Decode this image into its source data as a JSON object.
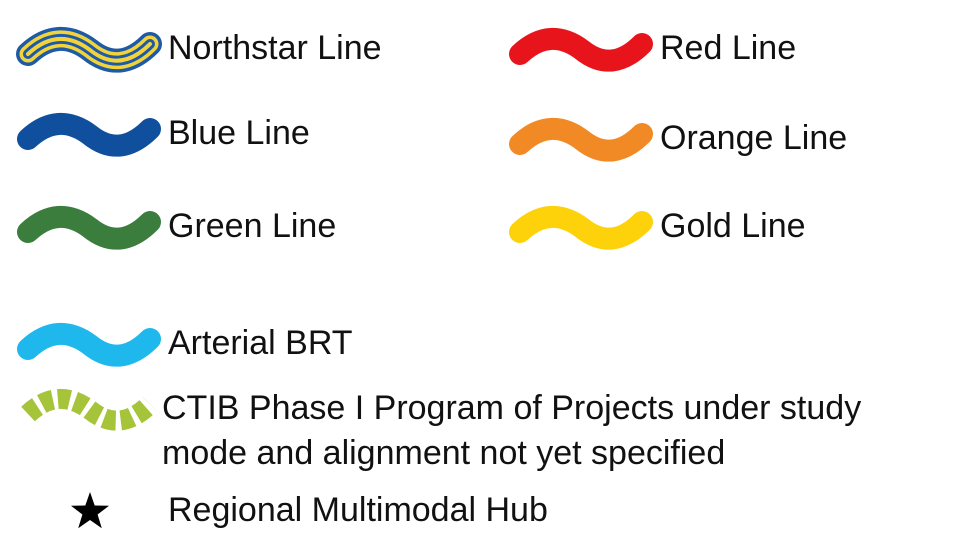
{
  "legend": {
    "items": [
      {
        "label": "Northstar Line",
        "symbol": "striped",
        "color": "#f2d43a",
        "outline": "#1f5aa6"
      },
      {
        "label": "Red Line",
        "symbol": "wave",
        "color": "#e8141b"
      },
      {
        "label": "Blue Line",
        "symbol": "wave",
        "color": "#0f4f9e"
      },
      {
        "label": "Orange Line",
        "symbol": "wave",
        "color": "#f18a24"
      },
      {
        "label": "Green Line",
        "symbol": "wave",
        "color": "#3a7d3c"
      },
      {
        "label": "Gold Line",
        "symbol": "wave",
        "color": "#fdd20a"
      },
      {
        "label": "Arterial BRT",
        "symbol": "wave",
        "color": "#1fb8ec"
      },
      {
        "label": [
          "CTIB Phase I Program of Projects under study",
          "mode and alignment not yet specified"
        ],
        "symbol": "dashed",
        "color": "#a6c43a"
      },
      {
        "label": "Regional Multimodal Hub",
        "symbol": "star",
        "color": "#000000"
      }
    ]
  }
}
